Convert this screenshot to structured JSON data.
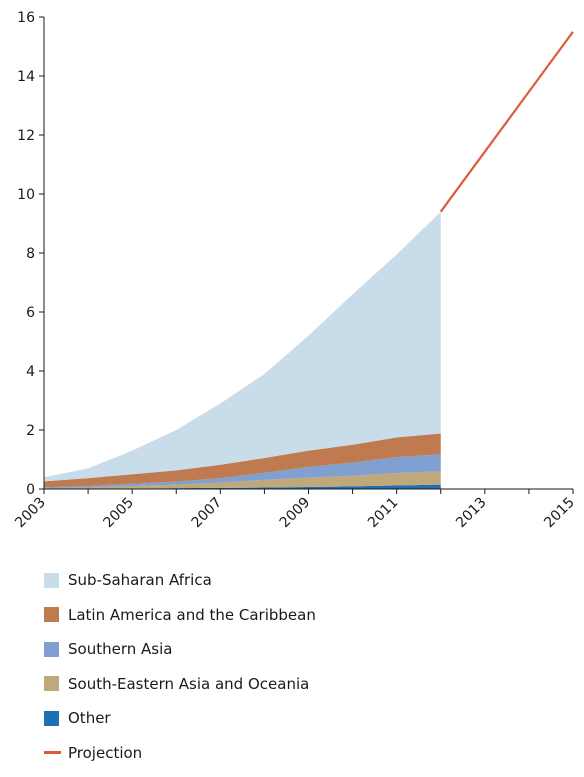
{
  "chart_data": {
    "type": "area",
    "title": "",
    "xlabel": "",
    "ylabel": "",
    "x": [
      2003,
      2004,
      2005,
      2006,
      2007,
      2008,
      2009,
      2010,
      2011,
      2012
    ],
    "xlim": [
      2003,
      2015
    ],
    "ylim": [
      0,
      16
    ],
    "x_ticks": [
      2003,
      2004,
      2005,
      2006,
      2007,
      2008,
      2009,
      2010,
      2011,
      2012,
      2013,
      2014,
      2015
    ],
    "x_tick_labels": [
      "2003",
      "2005",
      "2007",
      "2009",
      "2011",
      "2013",
      "2015"
    ],
    "y_ticks": [
      0,
      2,
      4,
      6,
      8,
      10,
      12,
      14,
      16
    ],
    "grid": false,
    "stacked": true,
    "legend_position": "bottom-left",
    "series": [
      {
        "name": "Other",
        "color": "#1f6fb4",
        "values": [
          0.01,
          0.01,
          0.02,
          0.03,
          0.04,
          0.05,
          0.07,
          0.09,
          0.12,
          0.15
        ]
      },
      {
        "name": "South-Eastern Asia and Oceania",
        "color": "#bfa87a",
        "values": [
          0.02,
          0.04,
          0.08,
          0.12,
          0.18,
          0.26,
          0.32,
          0.36,
          0.42,
          0.45
        ]
      },
      {
        "name": "Southern Asia",
        "color": "#7fa0d0",
        "values": [
          0.03,
          0.05,
          0.08,
          0.1,
          0.15,
          0.24,
          0.36,
          0.45,
          0.54,
          0.58
        ]
      },
      {
        "name": "Latin America and the Caribbean",
        "color": "#c07a4f",
        "values": [
          0.2,
          0.27,
          0.32,
          0.38,
          0.45,
          0.5,
          0.55,
          0.6,
          0.67,
          0.7
        ]
      },
      {
        "name": "Sub-Saharan Africa",
        "color": "#c9dcea",
        "values": [
          0.14,
          0.33,
          0.8,
          1.37,
          2.08,
          2.85,
          3.9,
          5.1,
          6.2,
          7.52
        ]
      }
    ],
    "projection": {
      "name": "Projection",
      "color": "#dd5a3c",
      "x": [
        2012,
        2015
      ],
      "y": [
        9.4,
        15.5
      ]
    }
  },
  "legend": [
    {
      "label": "Sub-Saharan Africa",
      "color": "#c9dcea",
      "kind": "swatch"
    },
    {
      "label": "Latin America and the Caribbean",
      "color": "#c07a4f",
      "kind": "swatch"
    },
    {
      "label": "Southern Asia",
      "color": "#7fa0d0",
      "kind": "swatch"
    },
    {
      "label": "South-Eastern Asia and Oceania",
      "color": "#bfa87a",
      "kind": "swatch"
    },
    {
      "label": "Other",
      "color": "#1f6fb4",
      "kind": "swatch"
    },
    {
      "label": "Projection",
      "color": "#dd5a3c",
      "kind": "line"
    }
  ]
}
